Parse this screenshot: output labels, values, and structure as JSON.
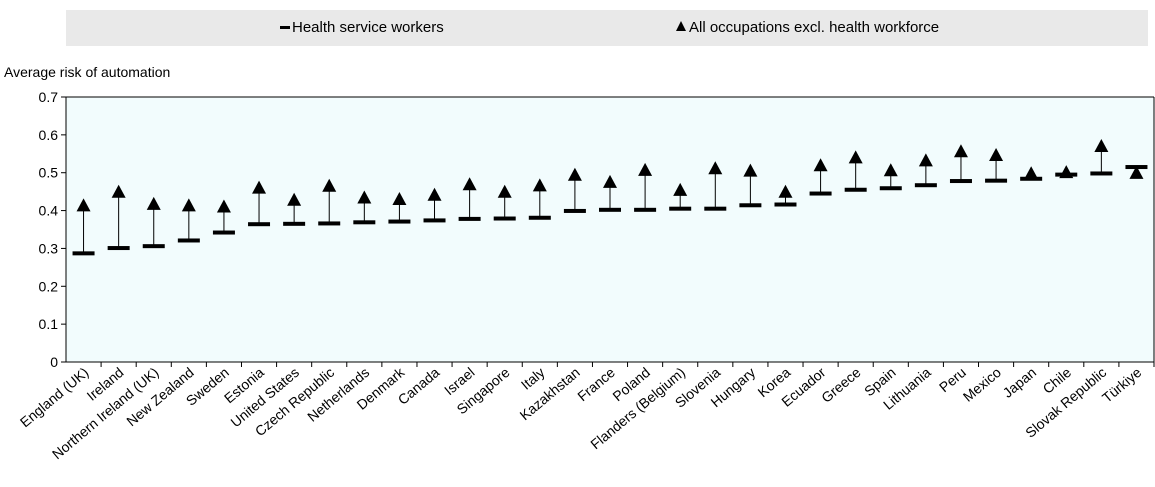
{
  "legend": {
    "health_label": "Health service workers",
    "other_label": "All occupations excl. health workforce"
  },
  "chart_data": {
    "type": "scatter",
    "title": "",
    "ylabel": "Average risk of automation",
    "xlabel": "",
    "ylim": [
      0,
      0.7
    ],
    "yticks": [
      "0",
      "0.1",
      "0.2",
      "0.3",
      "0.4",
      "0.5",
      "0.6",
      "0.7"
    ],
    "grid": false,
    "legend_position": "top",
    "colors": {
      "background": "#f2fcfd",
      "marks": "#000000",
      "legend_bg": "#e9e9e9"
    },
    "categories": [
      "England (UK)",
      "Ireland",
      "Northern Ireland (UK)",
      "New Zealand",
      "Sweden",
      "Estonia",
      "United States",
      "Czech Republic",
      "Netherlands",
      "Denmark",
      "Canada",
      "Israel",
      "Singapore",
      "Italy",
      "Kazakhstan",
      "France",
      "Poland",
      "Flanders (Belgium)",
      "Slovenia",
      "Hungary",
      "Korea",
      "Ecuador",
      "Greece",
      "Spain",
      "Lithuania",
      "Peru",
      "Mexico",
      "Japan",
      "Chile",
      "Slovak Republic",
      "Türkiye"
    ],
    "series": [
      {
        "name": "Health service workers",
        "marker": "dash",
        "values": [
          0.287,
          0.301,
          0.306,
          0.321,
          0.342,
          0.364,
          0.365,
          0.366,
          0.369,
          0.371,
          0.374,
          0.378,
          0.379,
          0.381,
          0.399,
          0.402,
          0.402,
          0.405,
          0.405,
          0.414,
          0.416,
          0.445,
          0.455,
          0.459,
          0.467,
          0.478,
          0.479,
          0.484,
          0.495,
          0.498,
          0.515
        ]
      },
      {
        "name": "All occupations excl. health workforce",
        "marker": "triangle",
        "values": [
          0.411,
          0.447,
          0.415,
          0.411,
          0.408,
          0.458,
          0.426,
          0.463,
          0.432,
          0.428,
          0.439,
          0.467,
          0.447,
          0.464,
          0.492,
          0.473,
          0.505,
          0.452,
          0.509,
          0.503,
          0.447,
          0.517,
          0.538,
          0.504,
          0.53,
          0.554,
          0.544,
          0.496,
          0.499,
          0.568,
          0.497
        ]
      }
    ]
  }
}
